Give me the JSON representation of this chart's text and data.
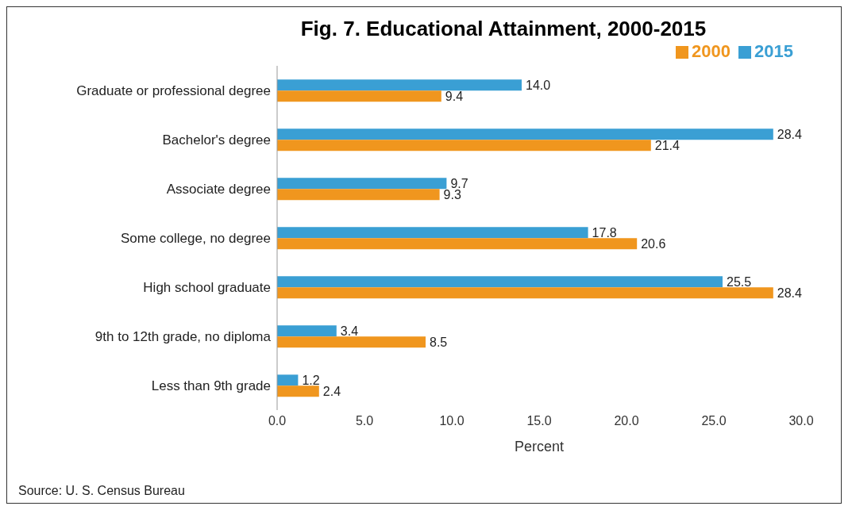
{
  "chart_data": {
    "type": "bar",
    "orientation": "horizontal",
    "title": "Fig. 7. Educational Attainment, 2000-2015",
    "xlabel": "Percent",
    "categories": [
      "Graduate or professional degree",
      "Bachelor's degree",
      "Associate degree",
      "Some college, no degree",
      "High school graduate",
      "9th to 12th grade, no diploma",
      "Less than 9th grade"
    ],
    "series": [
      {
        "name": "2015",
        "color": "#3a9fd4",
        "values": [
          14.0,
          28.4,
          9.7,
          17.8,
          25.5,
          3.4,
          1.2
        ],
        "value_labels": [
          "14.0",
          "28.4",
          "9.7",
          "17.8",
          "25.5",
          "3.4",
          "1.2"
        ]
      },
      {
        "name": "2000",
        "color": "#f0961e",
        "values": [
          9.4,
          21.4,
          9.3,
          20.6,
          28.4,
          8.5,
          2.4
        ],
        "value_labels": [
          "9.4",
          "21.4",
          "9.3",
          "20.6",
          "28.4",
          "8.5",
          "2.4"
        ]
      }
    ],
    "xlim": [
      0,
      30
    ],
    "xticks": [
      {
        "value": 0,
        "label": "0.0"
      },
      {
        "value": 5,
        "label": "5.0"
      },
      {
        "value": 10,
        "label": "10.0"
      },
      {
        "value": 15,
        "label": "15.0"
      },
      {
        "value": 20,
        "label": "20.0"
      },
      {
        "value": 25,
        "label": "25.0"
      },
      {
        "value": 30,
        "label": "30.0"
      }
    ],
    "legend": "top right",
    "grid": false,
    "annotations": [
      "Source: U. S. Census Bureau"
    ]
  }
}
